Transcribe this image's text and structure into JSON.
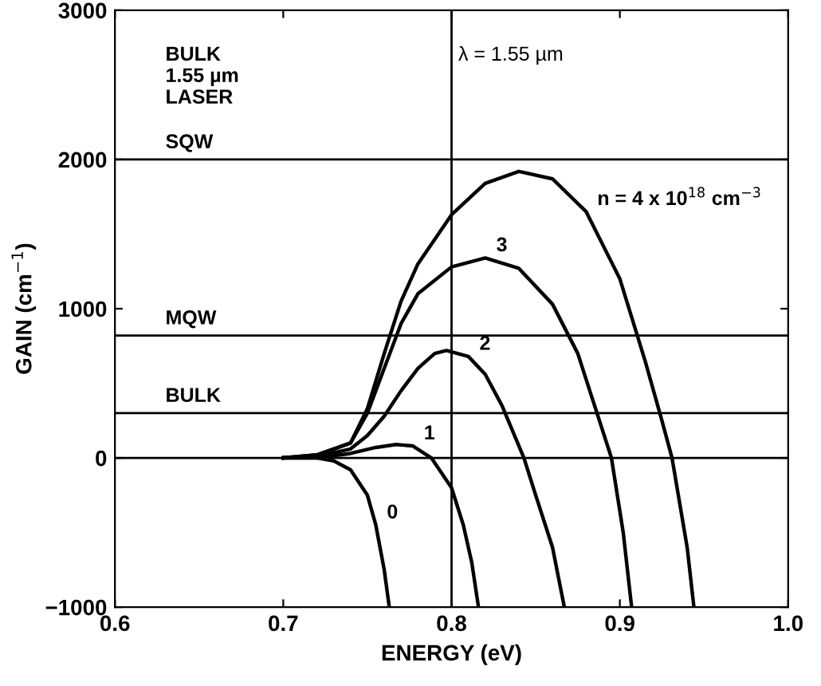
{
  "chart_data": {
    "type": "line",
    "xlabel": "ENERGY (eV)",
    "ylabel": "GAIN (cm$^{−1}$)",
    "xlim": [
      0.6,
      1.0
    ],
    "xticks": [
      0.6,
      0.7,
      0.8,
      0.9,
      {
        "value": 1.0,
        "label": "1.0"
      }
    ],
    "ylim": [
      -1000,
      3000
    ],
    "yticks": [
      -1000,
      0,
      1000,
      2000,
      3000
    ],
    "grid": false,
    "legend": false,
    "marker": "none",
    "line_style": "solid",
    "series": [
      {
        "color": "#000000",
        "x": [
          0.7,
          0.72,
          0.73,
          0.74,
          0.75,
          0.755,
          0.76,
          0.763
        ],
        "values": [
          0,
          0,
          -20,
          -80,
          -250,
          -450,
          -750,
          -1000
        ]
      },
      {
        "color": "#000000",
        "x": [
          0.7,
          0.72,
          0.74,
          0.755,
          0.767,
          0.777,
          0.788,
          0.8,
          0.807,
          0.812,
          0.816
        ],
        "values": [
          0,
          0,
          30,
          70,
          90,
          80,
          0,
          -200,
          -450,
          -700,
          -1000
        ]
      },
      {
        "color": "#000000",
        "x": [
          0.7,
          0.72,
          0.74,
          0.75,
          0.76,
          0.77,
          0.78,
          0.79,
          0.797,
          0.81,
          0.82,
          0.83,
          0.843,
          0.85,
          0.86,
          0.867
        ],
        "values": [
          0,
          10,
          60,
          150,
          280,
          450,
          600,
          700,
          720,
          680,
          560,
          350,
          0,
          -250,
          -600,
          -1000
        ]
      },
      {
        "color": "#000000",
        "x": [
          0.7,
          0.72,
          0.74,
          0.75,
          0.76,
          0.77,
          0.78,
          0.8,
          0.82,
          0.84,
          0.86,
          0.875,
          0.885,
          0.895,
          0.902,
          0.907
        ],
        "values": [
          0,
          20,
          100,
          300,
          600,
          900,
          1100,
          1280,
          1340,
          1270,
          1030,
          700,
          350,
          0,
          -500,
          -1000
        ]
      },
      {
        "color": "#000000",
        "x": [
          0.7,
          0.72,
          0.74,
          0.75,
          0.76,
          0.77,
          0.78,
          0.8,
          0.82,
          0.84,
          0.86,
          0.88,
          0.9,
          0.915,
          0.925,
          0.931,
          0.94,
          0.944
        ],
        "values": [
          0,
          20,
          100,
          330,
          700,
          1050,
          1300,
          1630,
          1840,
          1920,
          1870,
          1650,
          1200,
          650,
          250,
          0,
          -600,
          -1000
        ]
      }
    ],
    "ref_lines": [
      {
        "axis": "y",
        "value": 2000,
        "label": "SQW",
        "color": "#000000"
      },
      {
        "axis": "y",
        "value": 820,
        "label": "MQW",
        "color": "#000000"
      },
      {
        "axis": "y",
        "value": 300,
        "label": "BULK",
        "color": "#000000"
      },
      {
        "axis": "y",
        "value": 0,
        "color": "#000000"
      },
      {
        "axis": "x",
        "value": 0.8,
        "color": "#000000"
      }
    ],
    "annotations": [
      "BULK\n1.55 µm\nLASER",
      "λ = 1.55 µm",
      {
        "text": "0",
        "x": 0.755,
        "y": -450
      },
      {
        "text": "1",
        "x": 0.777,
        "y": 80
      },
      {
        "text": "2",
        "x": 0.81,
        "y": 680
      },
      {
        "text": "3",
        "x": 0.82,
        "y": 1340
      },
      {
        "text": "n = 4 x 10$^{18}$ cm$^{−3}$",
        "x": 0.88,
        "y": 1650
      }
    ]
  }
}
